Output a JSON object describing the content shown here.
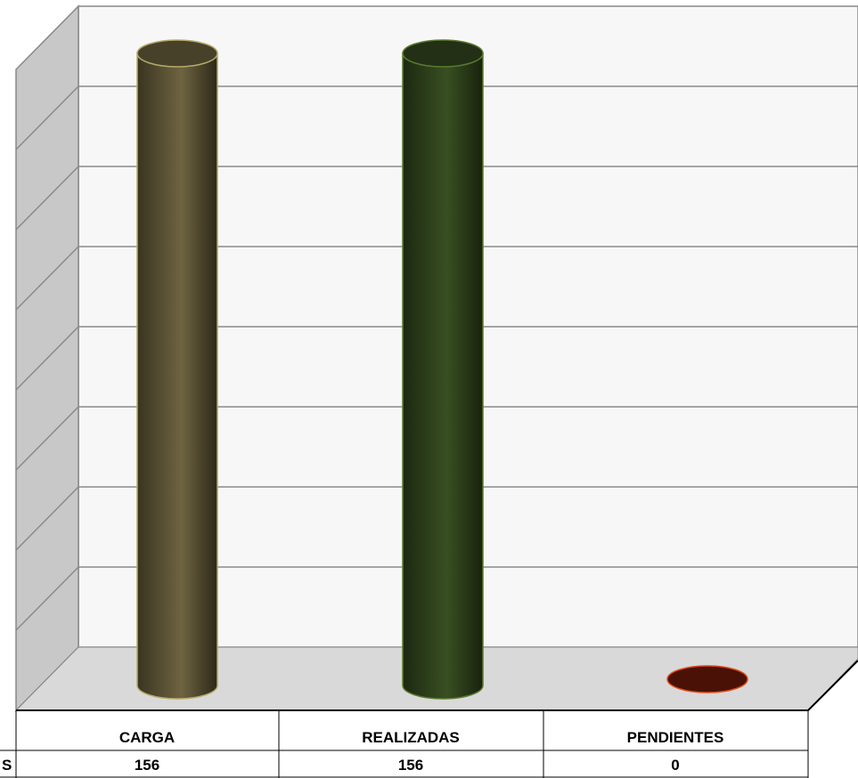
{
  "chart_data": {
    "type": "bar",
    "style": "3d-cylinder",
    "categories": [
      "CARGA",
      "REALIZADAS",
      "PENDIENTES"
    ],
    "series": [
      {
        "name": "S",
        "values": [
          156,
          156,
          0
        ]
      }
    ],
    "bar_colors": [
      "#6e6441",
      "#364a21",
      "#4a1106"
    ],
    "bar_edge_colors": [
      "#b4aa6a",
      "#5a7a30",
      "#e04a1c"
    ],
    "ylim": [
      0,
      160
    ],
    "grid": true,
    "data_table": true
  }
}
